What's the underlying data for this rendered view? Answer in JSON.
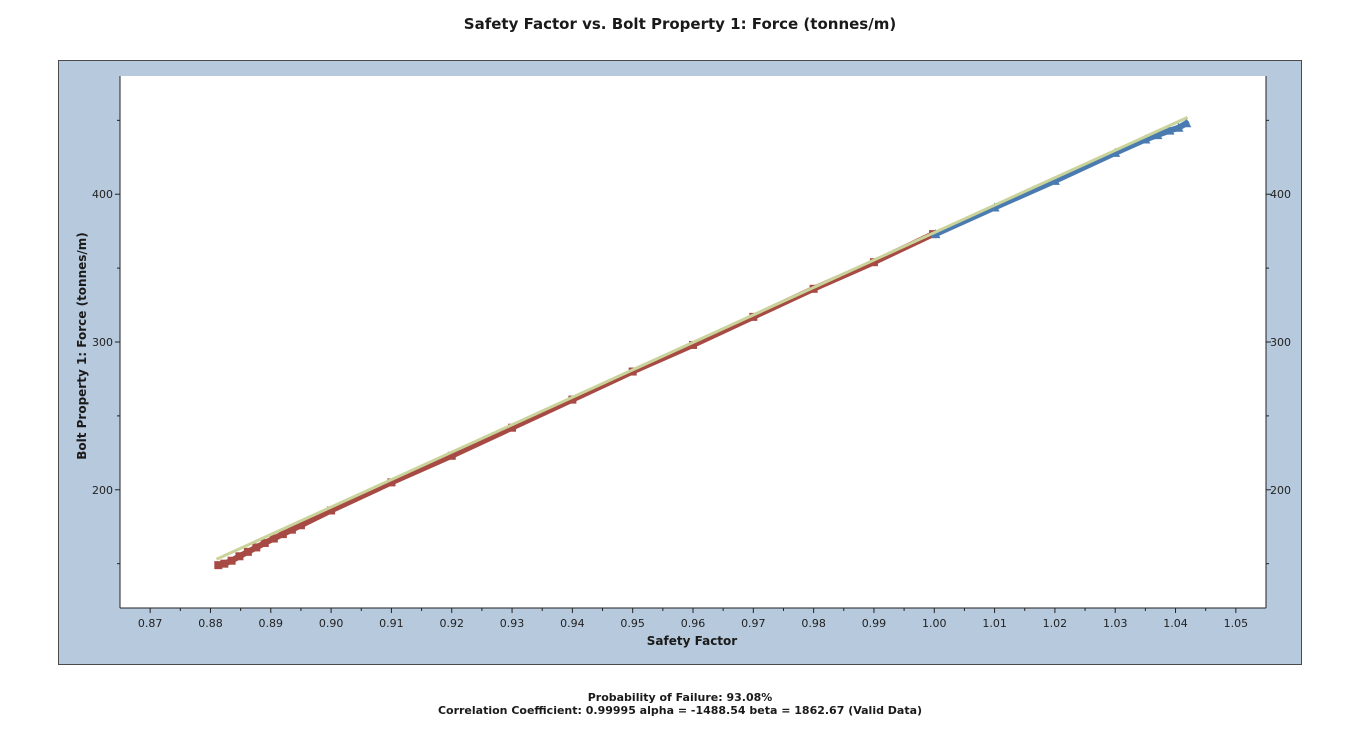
{
  "chart_data": {
    "type": "scatter",
    "title": "Safety Factor vs. Bolt Property 1: Force (tonnes/m)",
    "xlabel": "Safety Factor",
    "ylabel": "Bolt Property 1: Force (tonnes/m)",
    "xlim": [
      0.865,
      1.055
    ],
    "ylim": [
      120,
      480
    ],
    "x_ticks": [
      "0.87",
      "0.88",
      "0.89",
      "0.90",
      "0.91",
      "0.92",
      "0.93",
      "0.94",
      "0.95",
      "0.96",
      "0.97",
      "0.98",
      "0.99",
      "1.00",
      "1.01",
      "1.02",
      "1.03",
      "1.04",
      "1.05"
    ],
    "y_ticks": [
      "200",
      "300",
      "400"
    ],
    "y_ticks_right": [
      "200",
      "300",
      "400"
    ],
    "series": [
      {
        "color": "#a84a44",
        "marker": "square",
        "x_range": [
          0.8813,
          0.9998
        ],
        "points": [
          {
            "x": 0.8813,
            "y": 149
          },
          {
            "x": 0.8823,
            "y": 150
          },
          {
            "x": 0.8835,
            "y": 152
          },
          {
            "x": 0.8848,
            "y": 155
          },
          {
            "x": 0.8862,
            "y": 158
          },
          {
            "x": 0.8876,
            "y": 161
          },
          {
            "x": 0.889,
            "y": 164
          },
          {
            "x": 0.8905,
            "y": 167
          },
          {
            "x": 0.892,
            "y": 170
          },
          {
            "x": 0.8935,
            "y": 173
          },
          {
            "x": 0.895,
            "y": 176
          },
          {
            "x": 0.9,
            "y": 186
          },
          {
            "x": 0.91,
            "y": 205
          },
          {
            "x": 0.92,
            "y": 223
          },
          {
            "x": 0.93,
            "y": 242
          },
          {
            "x": 0.94,
            "y": 261
          },
          {
            "x": 0.95,
            "y": 280
          },
          {
            "x": 0.96,
            "y": 298
          },
          {
            "x": 0.97,
            "y": 317
          },
          {
            "x": 0.98,
            "y": 336
          },
          {
            "x": 0.99,
            "y": 354
          },
          {
            "x": 0.9998,
            "y": 373
          }
        ]
      },
      {
        "color": "#4a7bb0",
        "marker": "triangle",
        "x_range": [
          1.0002,
          1.0418
        ],
        "points": [
          {
            "x": 1.0002,
            "y": 373
          },
          {
            "x": 1.01,
            "y": 391
          },
          {
            "x": 1.02,
            "y": 409
          },
          {
            "x": 1.03,
            "y": 428
          },
          {
            "x": 1.035,
            "y": 437
          },
          {
            "x": 1.037,
            "y": 440
          },
          {
            "x": 1.039,
            "y": 443
          },
          {
            "x": 1.0405,
            "y": 445
          },
          {
            "x": 1.0418,
            "y": 448
          }
        ]
      }
    ],
    "trend_line": {
      "color": "#c9d39a",
      "from": {
        "x": 0.881,
        "y": 153
      },
      "to": {
        "x": 1.042,
        "y": 452
      }
    },
    "grid": false,
    "legend": "none"
  },
  "footer": {
    "line1": "Probability of Failure: 93.08%",
    "line2": "Correlation Coefficient: 0.99995 alpha = -1488.54 beta = 1862.67 (Valid Data)"
  }
}
